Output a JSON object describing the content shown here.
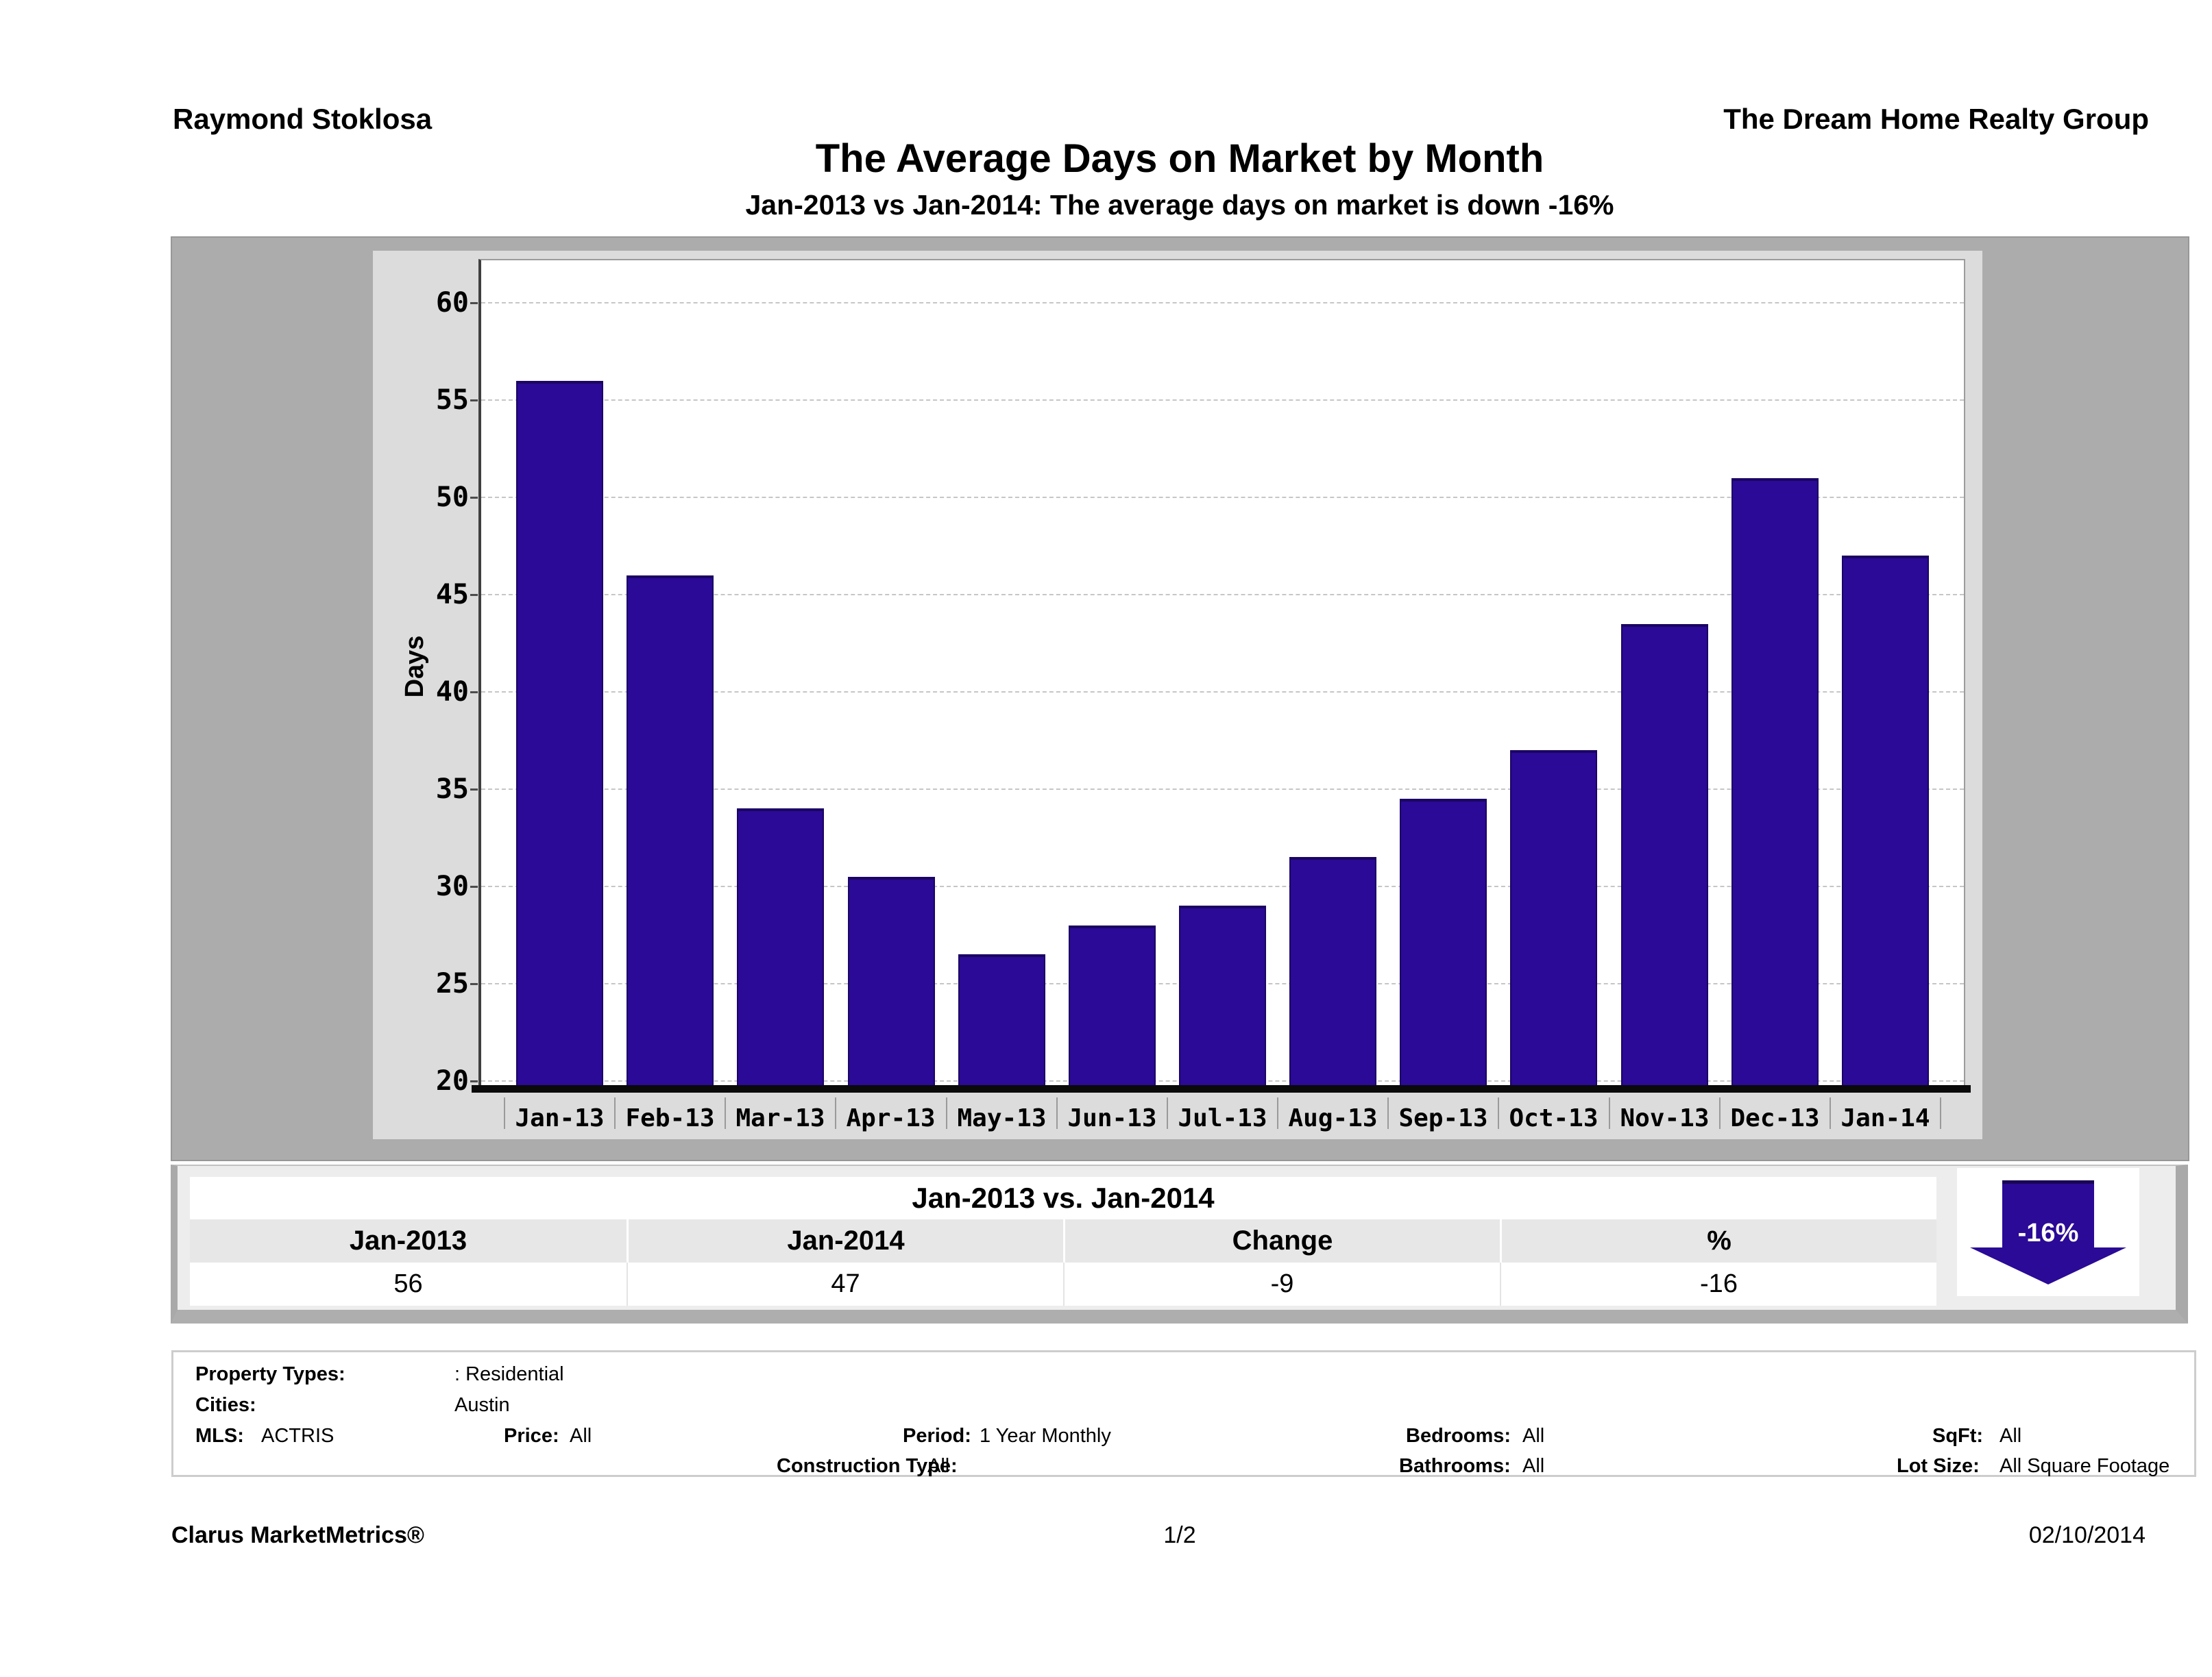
{
  "header": {
    "agent_name": "Raymond Stoklosa",
    "company_name": "The Dream Home Realty Group",
    "title": "The Average Days on Market by Month",
    "subtitle": "Jan-2013 vs Jan-2014: The average days on market is down -16%"
  },
  "chart_data": {
    "type": "bar",
    "title": "The Average Days on Market by Month",
    "categories": [
      "Jan-13",
      "Feb-13",
      "Mar-13",
      "Apr-13",
      "May-13",
      "Jun-13",
      "Jul-13",
      "Aug-13",
      "Sep-13",
      "Oct-13",
      "Nov-13",
      "Dec-13",
      "Jan-14"
    ],
    "values": [
      56,
      46,
      34,
      30.5,
      26.5,
      28,
      29,
      31.5,
      34.5,
      37,
      43.5,
      51,
      47
    ],
    "xlabel": "",
    "ylabel": "Days",
    "ylim": [
      19.4,
      62
    ],
    "yticks": [
      20,
      25,
      30,
      35,
      40,
      45,
      50,
      55,
      60
    ],
    "grid": "horizontal dashed gridlines",
    "legend": "none",
    "bar_color": "#2a0a96",
    "bar_border_color": "#1b0563"
  },
  "summary": {
    "title": "Jan-2013 vs. Jan-2014",
    "columns": [
      "Jan-2013",
      "Jan-2014",
      "Change",
      "%"
    ],
    "values": [
      "56",
      "47",
      "-9",
      "-16"
    ],
    "arrow_label": "-16%",
    "arrow_direction": "down",
    "arrow_color": "#2a0a96"
  },
  "criteria": {
    "property_types_label": "Property Types:",
    "property_types_value": ": Residential",
    "cities_label": "Cities:",
    "cities_value": "Austin",
    "mls_label": "MLS:",
    "mls_value": "ACTRIS",
    "price_label": "Price:",
    "price_value": "All",
    "period_label": "Period:",
    "period_value": "1 Year Monthly",
    "construction_type_label": "Construction Type:",
    "construction_type_value": "All",
    "bedrooms_label": "Bedrooms:",
    "bedrooms_value": "All",
    "bathrooms_label": "Bathrooms:",
    "bathrooms_value": "All",
    "sqft_label": "SqFt:",
    "sqft_value": "All",
    "lot_size_label": "Lot Size:",
    "lot_size_value": "All Square Footage"
  },
  "footer": {
    "brand": "Clarus MarketMetrics®",
    "page_number": "1/2",
    "date": "02/10/2014"
  }
}
